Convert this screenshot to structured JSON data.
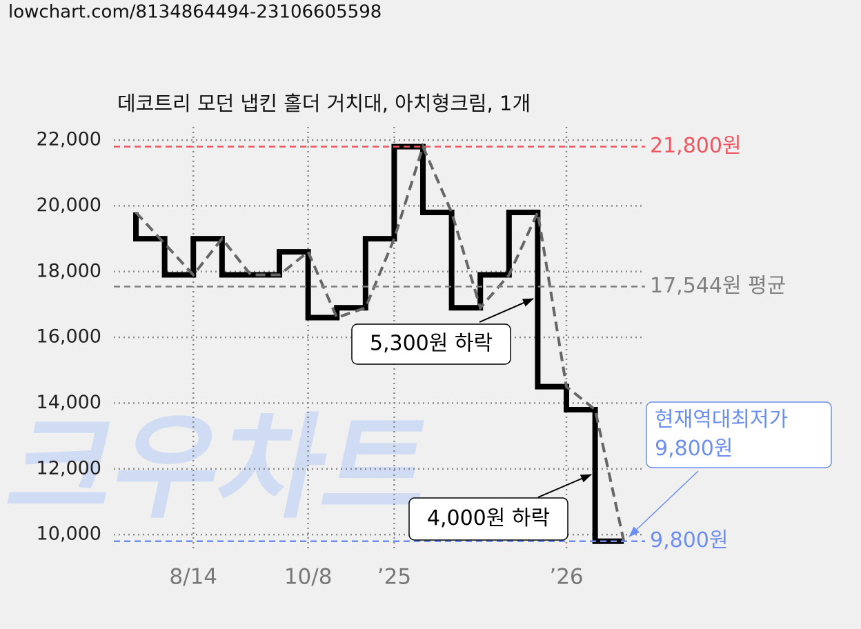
{
  "url": "lowchart.com/8134864494-23106605598",
  "chart_data": {
    "type": "line",
    "step": true,
    "title": "데코트리 모던 냅킨 홀더 거치대, 아치형크림, 1개",
    "watermark": "크우차트",
    "xlim": [
      -0.77,
      17.74
    ],
    "xticks": [
      {
        "value": 2,
        "label": "8/14"
      },
      {
        "value": 6,
        "label": "10/8"
      },
      {
        "value": 9,
        "label": "’25"
      },
      {
        "value": 15,
        "label": "’26"
      }
    ],
    "ylim": [
      9500,
      22400
    ],
    "yticks": [
      {
        "value": 10000,
        "label": "10,000"
      },
      {
        "value": 12000,
        "label": "12,000"
      },
      {
        "value": 14000,
        "label": "14,000"
      },
      {
        "value": 16000,
        "label": "16,000"
      },
      {
        "value": 18000,
        "label": "18,000"
      },
      {
        "value": 20000,
        "label": "20,000"
      },
      {
        "value": 22000,
        "label": "22,000"
      }
    ],
    "grid": true,
    "series": [
      {
        "color": "#000000",
        "style": "step",
        "x": [
          0,
          0,
          1,
          2,
          3,
          4,
          5,
          6,
          7,
          8,
          9,
          10,
          11,
          12,
          13,
          14,
          15,
          16,
          17
        ],
        "values": [
          19800,
          19000,
          17900,
          19000,
          17900,
          17900,
          18600,
          16600,
          16900,
          19000,
          21800,
          19800,
          16900,
          17900,
          19800,
          14500,
          13800,
          9800,
          9800
        ]
      },
      {
        "color": "#666666",
        "style": "dashed",
        "x": [
          0,
          2,
          3,
          4,
          5,
          6,
          7,
          8,
          9,
          10,
          11,
          12,
          13,
          14,
          15,
          16,
          17
        ],
        "values": [
          19800,
          17900,
          19000,
          17900,
          17900,
          18600,
          16600,
          16900,
          19000,
          21800,
          19800,
          16900,
          17900,
          19800,
          14500,
          13800,
          9800
        ]
      }
    ],
    "ref_lines": [
      {
        "value": 21800,
        "label": "21,800원",
        "color": "#f0555f"
      },
      {
        "value": 17544,
        "label": "17,544원 평균",
        "color": "#808080"
      },
      {
        "value": 9800,
        "label": "9,800원",
        "color": "#6b8ef0"
      }
    ],
    "annotations": [
      {
        "lines": [
          "5,300원 하락"
        ]
      },
      {
        "lines": [
          "4,000원 하락"
        ]
      },
      {
        "lines": [
          "현재역대최저가",
          "9,800원"
        ],
        "color": "#6b8ef0"
      }
    ]
  }
}
